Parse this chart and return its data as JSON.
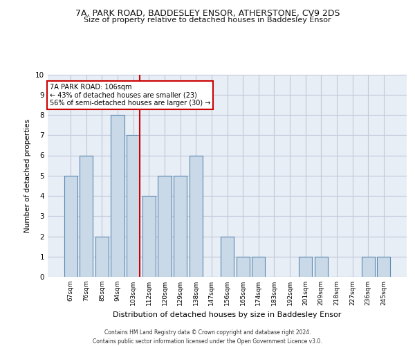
{
  "title_line1": "7A, PARK ROAD, BADDESLEY ENSOR, ATHERSTONE, CV9 2DS",
  "title_line2": "Size of property relative to detached houses in Baddesley Ensor",
  "xlabel": "Distribution of detached houses by size in Baddesley Ensor",
  "ylabel": "Number of detached properties",
  "categories": [
    "67sqm",
    "76sqm",
    "85sqm",
    "94sqm",
    "103sqm",
    "112sqm",
    "120sqm",
    "129sqm",
    "138sqm",
    "147sqm",
    "156sqm",
    "165sqm",
    "174sqm",
    "183sqm",
    "192sqm",
    "201sqm",
    "209sqm",
    "218sqm",
    "227sqm",
    "236sqm",
    "245sqm"
  ],
  "values": [
    5,
    6,
    2,
    8,
    7,
    4,
    5,
    5,
    6,
    0,
    2,
    1,
    1,
    0,
    0,
    1,
    1,
    0,
    0,
    1,
    1
  ],
  "bar_color": "#c9d9e8",
  "bar_edge_color": "#5a87b0",
  "highlight_index": 4,
  "highlight_line_color": "#cc0000",
  "annotation_text": "7A PARK ROAD: 106sqm\n← 43% of detached houses are smaller (23)\n56% of semi-detached houses are larger (30) →",
  "annotation_box_color": "#ffffff",
  "annotation_box_edge_color": "#cc0000",
  "ylim": [
    0,
    10
  ],
  "yticks": [
    0,
    1,
    2,
    3,
    4,
    5,
    6,
    7,
    8,
    9,
    10
  ],
  "grid_color": "#c0c8d8",
  "bg_color": "#e8eef5",
  "footer_line1": "Contains HM Land Registry data © Crown copyright and database right 2024.",
  "footer_line2": "Contains public sector information licensed under the Open Government Licence v3.0."
}
